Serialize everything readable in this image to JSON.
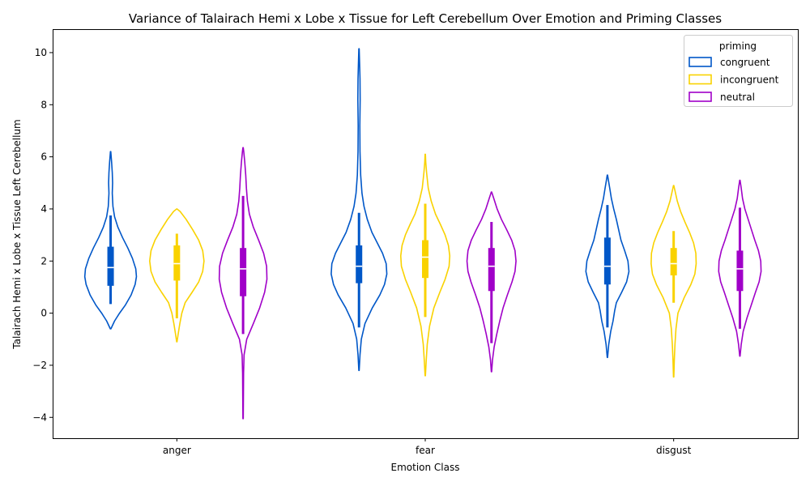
{
  "chart_data": {
    "type": "violin",
    "title": "Variance of Talairach Hemi x Lobe x Tissue for Left Cerebellum Over Emotion and Priming Classes",
    "xlabel": "Emotion Class",
    "ylabel": "Talairach Hemi x Lobe x Tissue Left Cerebellum",
    "ylim": [
      -4.8,
      10.9
    ],
    "yticks": [
      "−4",
      "−2",
      "0",
      "2",
      "4",
      "6",
      "8",
      "10"
    ],
    "ytick_values": [
      -4,
      -2,
      0,
      2,
      4,
      6,
      8,
      10
    ],
    "categories": [
      "anger",
      "fear",
      "disgust"
    ],
    "legend": {
      "title": "priming",
      "placement": "top-right"
    },
    "grid": false,
    "series": [
      {
        "name": "congruent",
        "color": "#0057c8",
        "groups": [
          {
            "category": "anger",
            "min": -0.6,
            "max": 6.2,
            "whisker_low": 0.35,
            "whisker_high": 3.75,
            "q1": 1.05,
            "median": 1.75,
            "q3": 2.55,
            "profile": [
              [
                -0.6,
                0.01
              ],
              [
                -0.3,
                0.12
              ],
              [
                0.0,
                0.27
              ],
              [
                0.3,
                0.44
              ],
              [
                0.7,
                0.62
              ],
              [
                1.1,
                0.74
              ],
              [
                1.4,
                0.78
              ],
              [
                1.7,
                0.76
              ],
              [
                2.1,
                0.66
              ],
              [
                2.5,
                0.52
              ],
              [
                2.9,
                0.36
              ],
              [
                3.3,
                0.22
              ],
              [
                3.7,
                0.12
              ],
              [
                4.1,
                0.07
              ],
              [
                4.6,
                0.05
              ],
              [
                5.0,
                0.06
              ],
              [
                5.4,
                0.05
              ],
              [
                5.8,
                0.03
              ],
              [
                6.2,
                0.005
              ]
            ]
          },
          {
            "category": "fear",
            "min": -2.2,
            "max": 10.15,
            "whisker_low": -0.55,
            "whisker_high": 3.85,
            "q1": 1.15,
            "median": 1.8,
            "q3": 2.6,
            "profile": [
              [
                -2.2,
                0.005
              ],
              [
                -1.6,
                0.03
              ],
              [
                -1.0,
                0.07
              ],
              [
                -0.4,
                0.18
              ],
              [
                0.2,
                0.4
              ],
              [
                0.7,
                0.63
              ],
              [
                1.1,
                0.77
              ],
              [
                1.5,
                0.84
              ],
              [
                1.9,
                0.82
              ],
              [
                2.3,
                0.71
              ],
              [
                2.7,
                0.55
              ],
              [
                3.1,
                0.39
              ],
              [
                3.6,
                0.25
              ],
              [
                4.1,
                0.15
              ],
              [
                4.6,
                0.09
              ],
              [
                5.3,
                0.05
              ],
              [
                6.2,
                0.03
              ],
              [
                7.2,
                0.025
              ],
              [
                8.2,
                0.035
              ],
              [
                9.0,
                0.03
              ],
              [
                9.7,
                0.015
              ],
              [
                10.15,
                0.005
              ]
            ]
          },
          {
            "category": "disgust",
            "min": -1.7,
            "max": 5.3,
            "whisker_low": -0.55,
            "whisker_high": 4.15,
            "q1": 1.1,
            "median": 1.8,
            "q3": 2.9,
            "profile": [
              [
                -1.7,
                0.005
              ],
              [
                -1.2,
                0.04
              ],
              [
                -0.7,
                0.1
              ],
              [
                -0.3,
                0.17
              ],
              [
                0.1,
                0.22
              ],
              [
                0.4,
                0.27
              ],
              [
                0.8,
                0.43
              ],
              [
                1.2,
                0.58
              ],
              [
                1.6,
                0.65
              ],
              [
                2.0,
                0.62
              ],
              [
                2.4,
                0.52
              ],
              [
                2.8,
                0.41
              ],
              [
                3.2,
                0.34
              ],
              [
                3.6,
                0.27
              ],
              [
                4.0,
                0.19
              ],
              [
                4.4,
                0.12
              ],
              [
                4.8,
                0.07
              ],
              [
                5.1,
                0.03
              ],
              [
                5.3,
                0.005
              ]
            ]
          }
        ]
      },
      {
        "name": "incongruent",
        "color": "#f9d200",
        "groups": [
          {
            "category": "anger",
            "min": -1.1,
            "max": 4.0,
            "whisker_low": -0.2,
            "whisker_high": 3.05,
            "q1": 1.25,
            "median": 1.9,
            "q3": 2.6,
            "profile": [
              [
                -1.1,
                0.005
              ],
              [
                -0.8,
                0.04
              ],
              [
                -0.4,
                0.09
              ],
              [
                0.0,
                0.15
              ],
              [
                0.4,
                0.25
              ],
              [
                0.8,
                0.46
              ],
              [
                1.2,
                0.66
              ],
              [
                1.6,
                0.78
              ],
              [
                2.0,
                0.82
              ],
              [
                2.4,
                0.78
              ],
              [
                2.8,
                0.66
              ],
              [
                3.2,
                0.48
              ],
              [
                3.6,
                0.28
              ],
              [
                3.9,
                0.1
              ],
              [
                4.0,
                0.005
              ]
            ]
          },
          {
            "category": "fear",
            "min": -2.4,
            "max": 6.1,
            "whisker_low": -0.15,
            "whisker_high": 4.2,
            "q1": 1.35,
            "median": 2.15,
            "q3": 2.8,
            "profile": [
              [
                -2.4,
                0.005
              ],
              [
                -1.8,
                0.03
              ],
              [
                -1.2,
                0.06
              ],
              [
                -0.5,
                0.13
              ],
              [
                0.2,
                0.26
              ],
              [
                0.8,
                0.44
              ],
              [
                1.3,
                0.6
              ],
              [
                1.8,
                0.72
              ],
              [
                2.2,
                0.74
              ],
              [
                2.6,
                0.7
              ],
              [
                3.0,
                0.6
              ],
              [
                3.4,
                0.46
              ],
              [
                3.8,
                0.31
              ],
              [
                4.3,
                0.18
              ],
              [
                4.8,
                0.09
              ],
              [
                5.4,
                0.04
              ],
              [
                5.8,
                0.015
              ],
              [
                6.1,
                0.005
              ]
            ]
          },
          {
            "category": "disgust",
            "min": -2.45,
            "max": 4.9,
            "whisker_low": 0.4,
            "whisker_high": 3.15,
            "q1": 1.45,
            "median": 1.9,
            "q3": 2.5,
            "profile": [
              [
                -2.45,
                0.005
              ],
              [
                -1.8,
                0.02
              ],
              [
                -1.2,
                0.04
              ],
              [
                -0.6,
                0.07
              ],
              [
                0.0,
                0.13
              ],
              [
                0.6,
                0.32
              ],
              [
                1.1,
                0.52
              ],
              [
                1.5,
                0.64
              ],
              [
                1.9,
                0.68
              ],
              [
                2.3,
                0.67
              ],
              [
                2.7,
                0.6
              ],
              [
                3.1,
                0.48
              ],
              [
                3.5,
                0.34
              ],
              [
                3.9,
                0.21
              ],
              [
                4.3,
                0.11
              ],
              [
                4.7,
                0.04
              ],
              [
                4.9,
                0.005
              ]
            ]
          }
        ]
      },
      {
        "name": "neutral",
        "color": "#a000c8",
        "groups": [
          {
            "category": "anger",
            "min": -4.05,
            "max": 6.35,
            "whisker_low": -0.8,
            "whisker_high": 4.5,
            "q1": 0.65,
            "median": 1.7,
            "q3": 2.5,
            "profile": [
              [
                -4.05,
                0.005
              ],
              [
                -3.2,
                0.01
              ],
              [
                -2.3,
                0.015
              ],
              [
                -1.6,
                0.03
              ],
              [
                -1.0,
                0.11
              ],
              [
                -0.4,
                0.31
              ],
              [
                0.2,
                0.5
              ],
              [
                0.8,
                0.65
              ],
              [
                1.3,
                0.72
              ],
              [
                1.8,
                0.71
              ],
              [
                2.3,
                0.62
              ],
              [
                2.8,
                0.47
              ],
              [
                3.3,
                0.31
              ],
              [
                3.8,
                0.19
              ],
              [
                4.3,
                0.13
              ],
              [
                4.8,
                0.1
              ],
              [
                5.3,
                0.08
              ],
              [
                5.8,
                0.05
              ],
              [
                6.2,
                0.02
              ],
              [
                6.35,
                0.005
              ]
            ]
          },
          {
            "category": "fear",
            "min": -2.25,
            "max": 4.65,
            "whisker_low": -1.15,
            "whisker_high": 3.5,
            "q1": 0.85,
            "median": 1.8,
            "q3": 2.5,
            "profile": [
              [
                -2.25,
                0.005
              ],
              [
                -1.8,
                0.03
              ],
              [
                -1.3,
                0.08
              ],
              [
                -0.8,
                0.16
              ],
              [
                -0.3,
                0.25
              ],
              [
                0.2,
                0.35
              ],
              [
                0.7,
                0.48
              ],
              [
                1.2,
                0.62
              ],
              [
                1.6,
                0.71
              ],
              [
                2.0,
                0.74
              ],
              [
                2.4,
                0.71
              ],
              [
                2.8,
                0.61
              ],
              [
                3.2,
                0.46
              ],
              [
                3.6,
                0.3
              ],
              [
                4.0,
                0.17
              ],
              [
                4.4,
                0.07
              ],
              [
                4.65,
                0.005
              ]
            ]
          },
          {
            "category": "disgust",
            "min": -1.65,
            "max": 5.1,
            "whisker_low": -0.6,
            "whisker_high": 4.05,
            "q1": 0.85,
            "median": 1.7,
            "q3": 2.4,
            "profile": [
              [
                -1.65,
                0.005
              ],
              [
                -1.2,
                0.04
              ],
              [
                -0.7,
                0.1
              ],
              [
                -0.2,
                0.21
              ],
              [
                0.3,
                0.34
              ],
              [
                0.8,
                0.47
              ],
              [
                1.2,
                0.58
              ],
              [
                1.6,
                0.64
              ],
              [
                2.0,
                0.63
              ],
              [
                2.4,
                0.56
              ],
              [
                2.8,
                0.45
              ],
              [
                3.2,
                0.35
              ],
              [
                3.6,
                0.25
              ],
              [
                4.0,
                0.15
              ],
              [
                4.4,
                0.08
              ],
              [
                4.8,
                0.04
              ],
              [
                5.1,
                0.005
              ]
            ]
          }
        ]
      }
    ]
  }
}
